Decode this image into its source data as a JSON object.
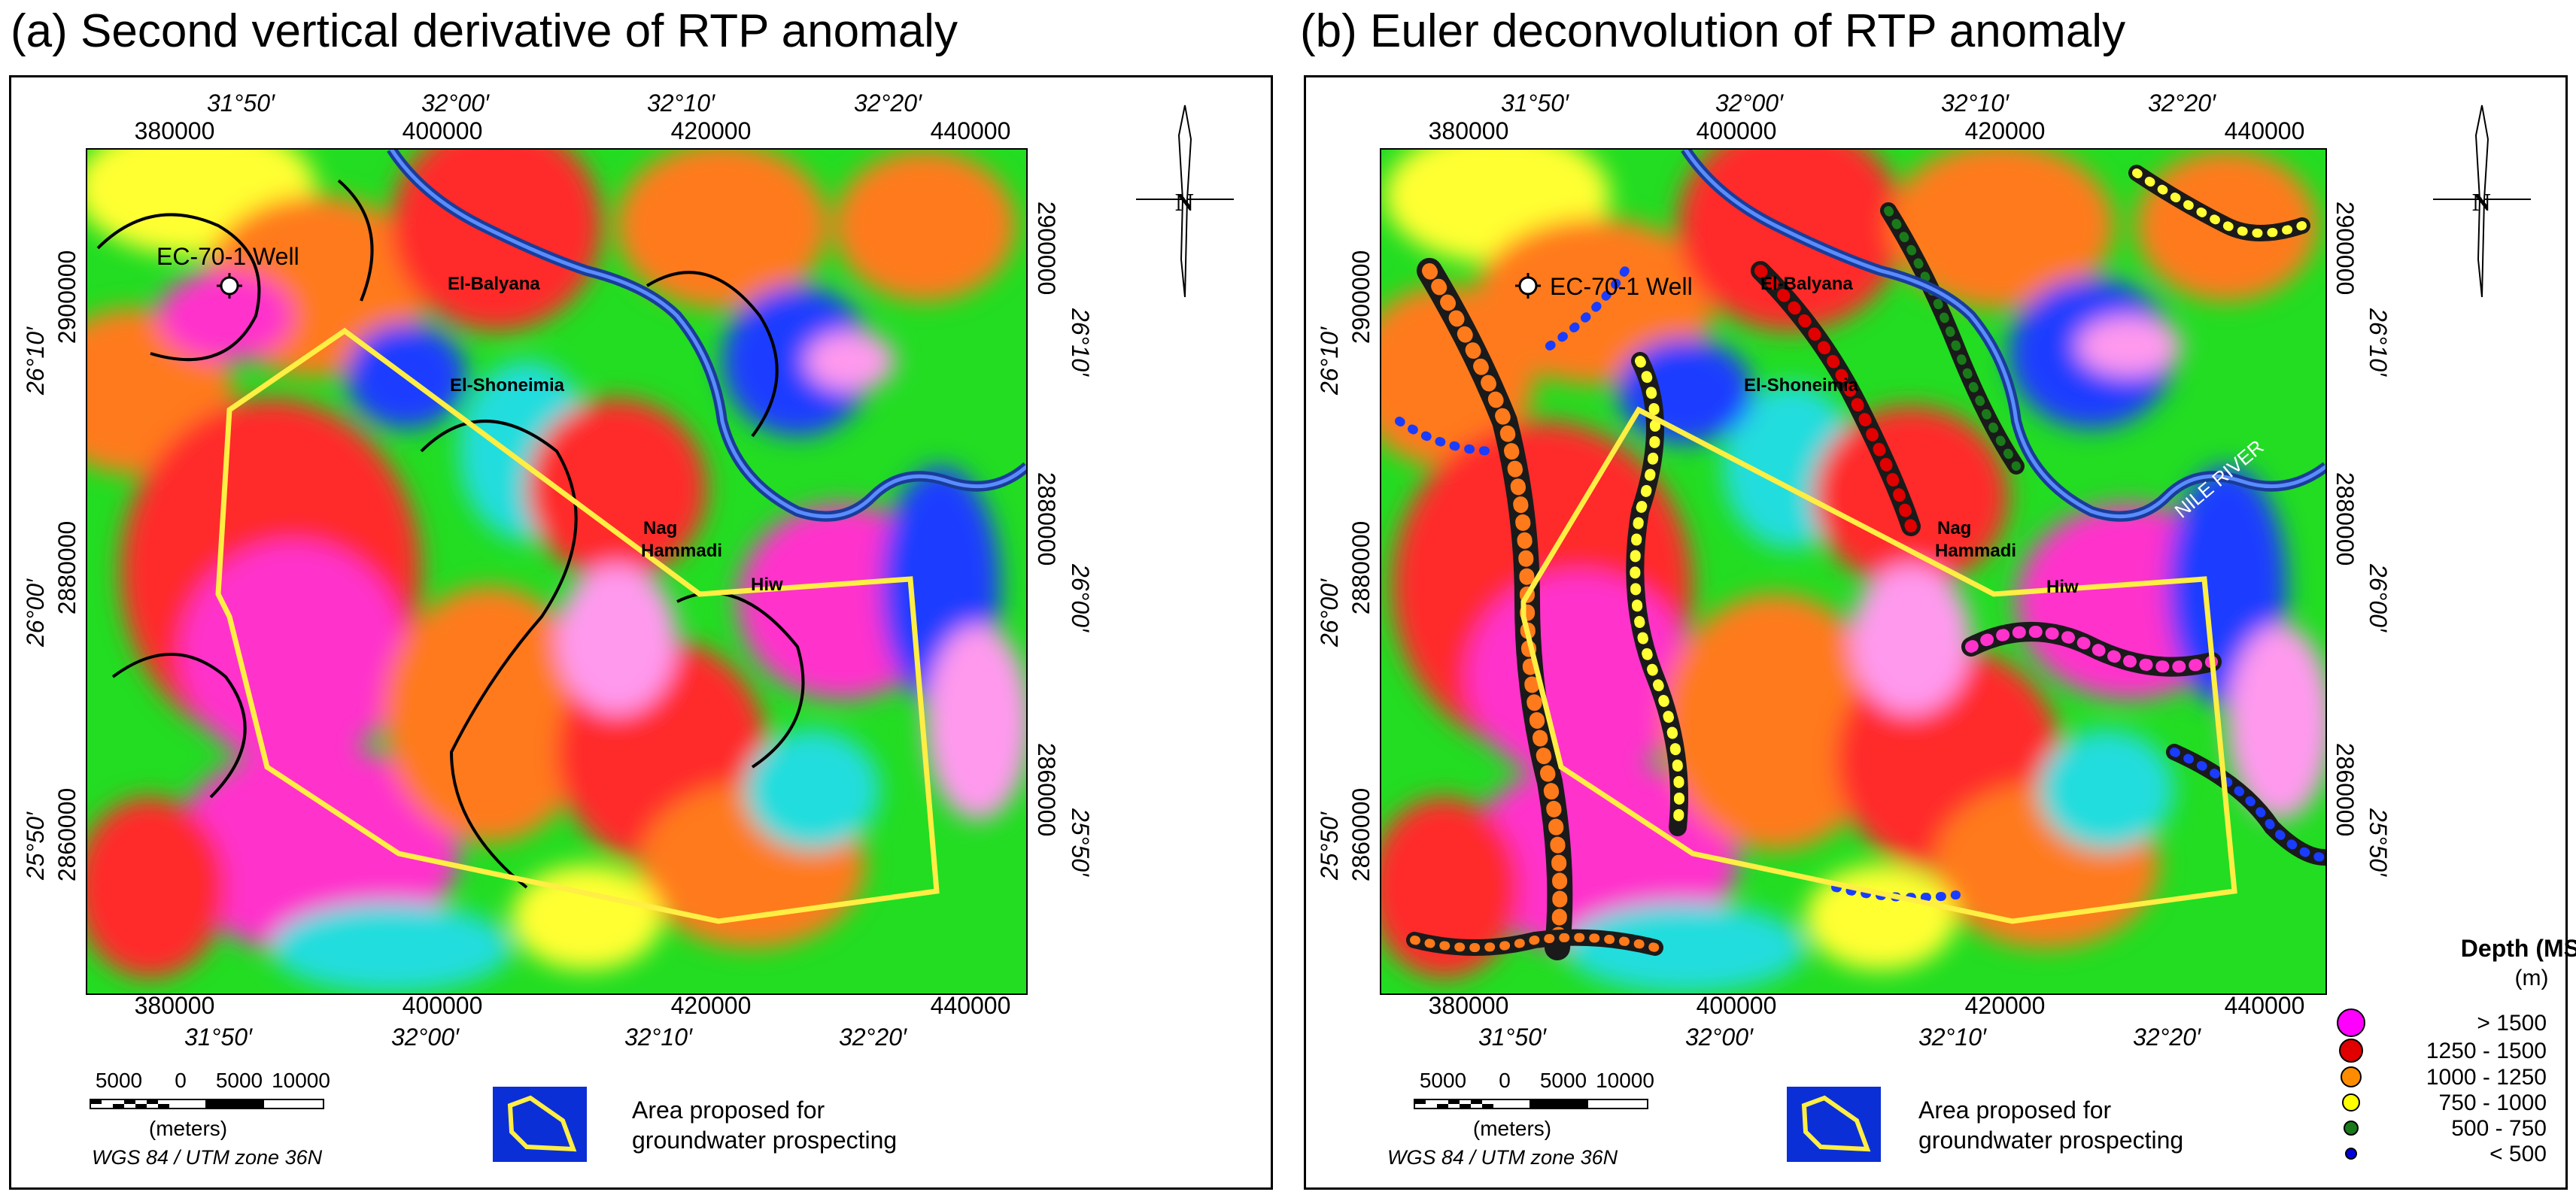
{
  "panels": [
    {
      "title": "(a) Second vertical derivative of RTP anomaly",
      "top_easting": [
        "380000",
        "400000",
        "420000",
        "440000"
      ],
      "bottom_easting": [
        "380000",
        "400000",
        "420000",
        "440000"
      ],
      "top_longitude": [
        "31°50′",
        "32°00′",
        "32°10′",
        "32°20′"
      ],
      "bottom_longitude": [
        "31°50′",
        "32°00′",
        "32°10′",
        "32°20′"
      ],
      "left_northing": [
        "2900000",
        "2880000",
        "2860000"
      ],
      "right_northing": [
        "2900000",
        "2880000",
        "2860000"
      ],
      "left_latitude": [
        "26°10′",
        "26°00′",
        "25°50′"
      ],
      "right_latitude": [
        "26°10′",
        "26°00′",
        "25°50′"
      ],
      "places": {
        "well": "EC-70-1 Well",
        "balyana": "El-Balyana",
        "shoneimia": "El-Shoneimia",
        "nag1": "Nag",
        "nag2": "Hammadi",
        "hiw": "Hiw"
      },
      "scale": {
        "labels": [
          "5000",
          "0",
          "5000",
          "10000"
        ],
        "unit": "(meters)",
        "projection": "WGS 84 / UTM zone 36N"
      },
      "legend_area": {
        "line1": "Area proposed for",
        "line2": "groundwater prospecting"
      }
    },
    {
      "title": "(b) Euler deconvolution of RTP anomaly",
      "top_easting": [
        "380000",
        "400000",
        "420000",
        "440000"
      ],
      "bottom_easting": [
        "380000",
        "400000",
        "420000",
        "440000"
      ],
      "top_longitude": [
        "31°50′",
        "32°00′",
        "32°10′",
        "32°20′"
      ],
      "bottom_longitude": [
        "31°50′",
        "32°00′",
        "32°10′",
        "32°20′"
      ],
      "left_northing": [
        "2900000",
        "2880000",
        "2860000"
      ],
      "right_northing": [
        "2900000",
        "2880000",
        "2860000"
      ],
      "left_latitude": [
        "26°10′",
        "26°00′",
        "25°50′"
      ],
      "right_latitude": [
        "26°10′",
        "26°00′",
        "25°50′"
      ],
      "places": {
        "well": "EC-70-1 Well",
        "balyana": "El-Balyana",
        "shoneimia": "El-Shoneimia",
        "nag1": "Nag",
        "nag2": "Hammadi",
        "hiw": "Hiw",
        "river": "NILE RIVER"
      },
      "scale": {
        "labels": [
          "5000",
          "0",
          "5000",
          "10000"
        ],
        "unit": "(meters)",
        "projection": "WGS 84 / UTM zone 36N"
      },
      "legend_area": {
        "line1": "Area proposed for",
        "line2": "groundwater prospecting"
      },
      "depth_legend": {
        "title": "Depth (MSL)",
        "unit": "(m)",
        "classes": [
          {
            "label": "> 1500",
            "color": "#ff00ff"
          },
          {
            "label": "1250  -  1500",
            "color": "#e00000"
          },
          {
            "label": "1000  -  1250",
            "color": "#ff8c00"
          },
          {
            "label": "750  -  1000",
            "color": "#ffff00"
          },
          {
            "label": "500  -  750",
            "color": "#1a7a1a"
          },
          {
            "label": "< 500",
            "color": "#0000dd"
          }
        ]
      }
    }
  ],
  "colors": {
    "magenta": "#ff33cc",
    "pink": "#ff99ee",
    "red": "#ff2a2a",
    "orange": "#ff7a1a",
    "yellow": "#ffff33",
    "green": "#22dd22",
    "cyan": "#22dddd",
    "blue": "#1a3cff",
    "polygon": "#ffee44",
    "legend_box": "#0b2fd6"
  }
}
